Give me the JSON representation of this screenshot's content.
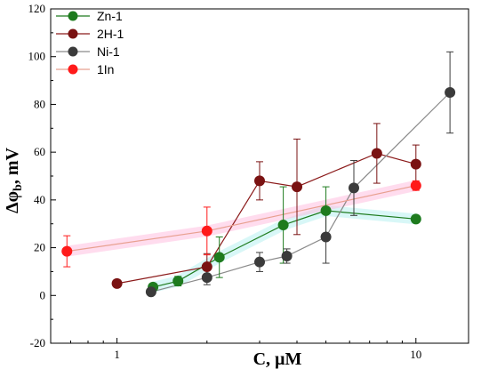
{
  "chart_data": {
    "type": "scatter",
    "xscale": "log",
    "xlabel": "C, µM",
    "ylabel_main": "Δφ",
    "ylabel_sub": "b",
    "ylabel_suffix": ", mV",
    "xlim": [
      0.6,
      15
    ],
    "ylim": [
      -20,
      120
    ],
    "x_ticks": [
      1,
      10
    ],
    "x_tick_labels": [
      "1",
      "10"
    ],
    "y_ticks": [
      -20,
      0,
      20,
      40,
      60,
      80,
      100,
      120
    ],
    "y_tick_labels": [
      "-20",
      "0",
      "20",
      "40",
      "60",
      "80",
      "100",
      "120"
    ],
    "grid": false,
    "legend_position": "top-left",
    "series": [
      {
        "name": "Zn-1",
        "color": "#1e7b1e",
        "line_color": "#1e7b1e",
        "glow": "#b8f0f0",
        "x": [
          1.32,
          1.6,
          2.2,
          3.6,
          5.0,
          10.0
        ],
        "y": [
          3.5,
          6.0,
          16.0,
          29.5,
          35.5,
          32.0
        ],
        "err": [
          1.0,
          2.0,
          8.5,
          16.0,
          10.0,
          1.5
        ]
      },
      {
        "name": "2H-1",
        "color": "#7a1212",
        "line_color": "#8b1a1a",
        "glow": null,
        "x": [
          1.0,
          2.0,
          3.0,
          4.0,
          7.4,
          10.0
        ],
        "y": [
          5.0,
          12.0,
          48.0,
          45.5,
          59.5,
          55.0
        ],
        "err": [
          1.5,
          5.5,
          8.0,
          20.0,
          12.5,
          8.0
        ]
      },
      {
        "name": "Ni-1",
        "color": "#3b3b3b",
        "line_color": "#8a8a8a",
        "glow": null,
        "x": [
          1.3,
          2.0,
          3.0,
          3.7,
          5.0,
          6.2,
          13.0
        ],
        "y": [
          1.5,
          7.5,
          14.0,
          16.5,
          24.5,
          45.0,
          85.0
        ],
        "err": [
          1.0,
          3.0,
          4.0,
          3.0,
          11.0,
          11.5,
          17.0
        ]
      },
      {
        "name": "1In",
        "color": "#ff1a1a",
        "line_color": "#e8a090",
        "glow": "#ffc0e0",
        "x": [
          0.68,
          2.0,
          10.0
        ],
        "y": [
          18.5,
          27.0,
          46.0
        ],
        "err": [
          6.5,
          10.0,
          2.0
        ]
      }
    ]
  }
}
